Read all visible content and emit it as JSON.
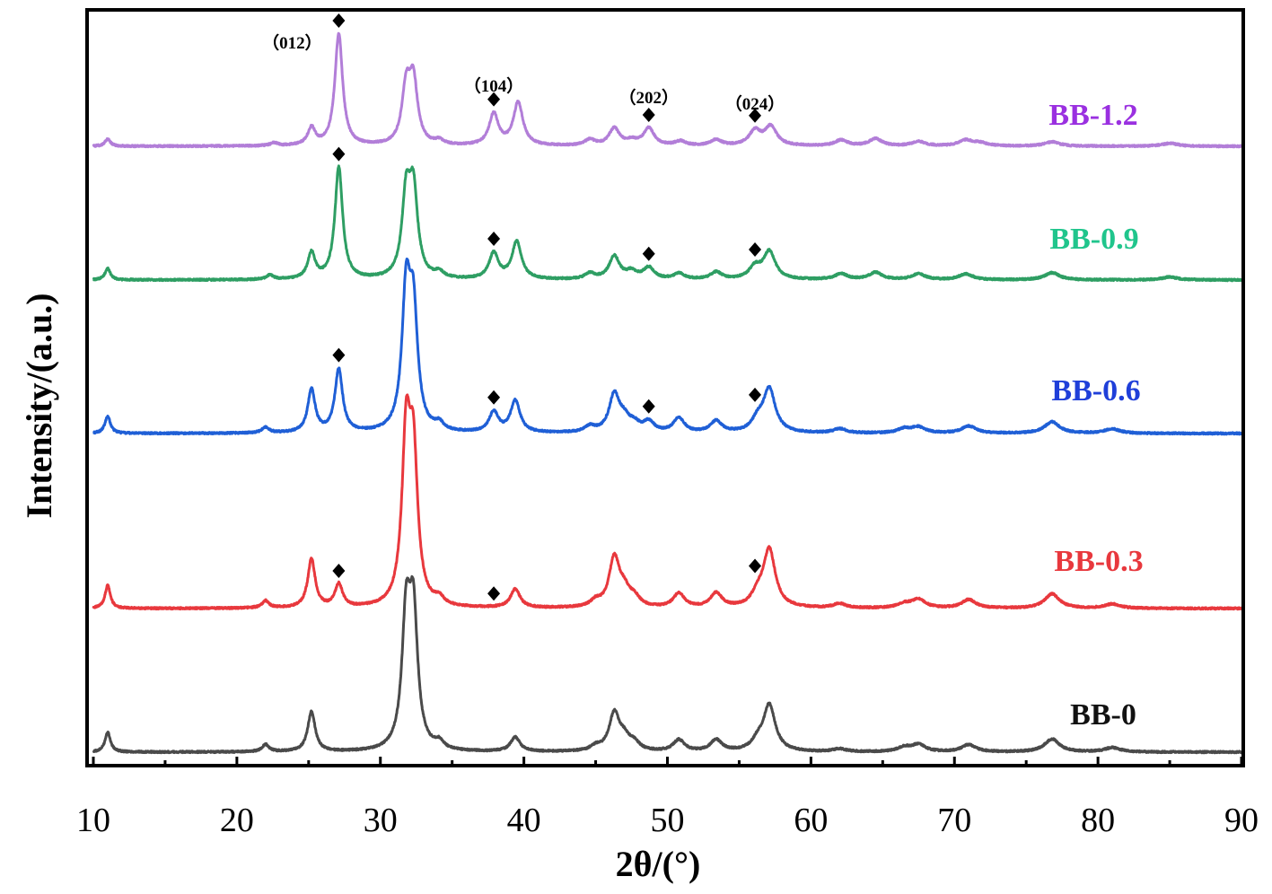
{
  "chart_data": {
    "type": "line",
    "title": "",
    "xlabel": "2θ/(°)",
    "ylabel": "Intensity/(a.u.)",
    "xlim": [
      10,
      90
    ],
    "xticks": [
      10,
      20,
      30,
      40,
      50,
      60,
      70,
      80,
      90
    ],
    "xtick_labels": [
      "10",
      "20",
      "30",
      "40",
      "50",
      "60",
      "70",
      "80",
      "90"
    ],
    "yticks": "none",
    "grid": false,
    "legend": "inline labels at right of each trace",
    "peak_marker": "◆",
    "peak_labels": [
      {
        "text": "（012）",
        "x": 27.1
      },
      {
        "text": "（104）",
        "x": 37.9
      },
      {
        "text": "（202）",
        "x": 48.7
      },
      {
        "text": "（024）",
        "x": 56.1
      }
    ],
    "series": [
      {
        "name": "BB-0",
        "color": "#4a4a4a",
        "label_color": "#111111",
        "peaks": [
          [
            11.0,
            0.14
          ],
          [
            22.0,
            0.05
          ],
          [
            25.2,
            0.28
          ],
          [
            31.8,
            0.88
          ],
          [
            32.3,
            0.9
          ],
          [
            34.1,
            0.05
          ],
          [
            39.4,
            0.1
          ],
          [
            45.0,
            0.03
          ],
          [
            46.3,
            0.26
          ],
          [
            47.0,
            0.08
          ],
          [
            47.7,
            0.05
          ],
          [
            50.8,
            0.08
          ],
          [
            53.4,
            0.08
          ],
          [
            56.3,
            0.06
          ],
          [
            57.1,
            0.32
          ],
          [
            62.0,
            0.02
          ],
          [
            66.5,
            0.03
          ],
          [
            67.5,
            0.05
          ],
          [
            71.0,
            0.05
          ],
          [
            76.8,
            0.09
          ],
          [
            81.0,
            0.03
          ]
        ],
        "markers": []
      },
      {
        "name": "BB-0.3",
        "color": "#e8383d",
        "label_color": "#e8383d",
        "peaks": [
          [
            11.0,
            0.16
          ],
          [
            22.0,
            0.05
          ],
          [
            25.2,
            0.34
          ],
          [
            27.1,
            0.16
          ],
          [
            31.8,
            1.13
          ],
          [
            32.3,
            0.98
          ],
          [
            34.1,
            0.05
          ],
          [
            39.4,
            0.13
          ],
          [
            45.0,
            0.04
          ],
          [
            46.3,
            0.34
          ],
          [
            47.0,
            0.1
          ],
          [
            47.7,
            0.06
          ],
          [
            50.8,
            0.1
          ],
          [
            53.4,
            0.1
          ],
          [
            56.3,
            0.08
          ],
          [
            57.1,
            0.4
          ],
          [
            62.0,
            0.03
          ],
          [
            66.5,
            0.03
          ],
          [
            67.5,
            0.06
          ],
          [
            71.0,
            0.06
          ],
          [
            76.8,
            0.1
          ],
          [
            81.0,
            0.03
          ]
        ],
        "markers": [
          27.1,
          37.9,
          56.1
        ]
      },
      {
        "name": "BB-0.6",
        "color": "#1f5fd6",
        "label_color": "#1f3fd9",
        "peaks": [
          [
            11.0,
            0.12
          ],
          [
            22.0,
            0.04
          ],
          [
            25.2,
            0.3
          ],
          [
            27.1,
            0.44
          ],
          [
            31.8,
            0.93
          ],
          [
            32.3,
            0.78
          ],
          [
            34.1,
            0.05
          ],
          [
            37.9,
            0.14
          ],
          [
            39.4,
            0.22
          ],
          [
            44.6,
            0.04
          ],
          [
            46.3,
            0.26
          ],
          [
            47.0,
            0.08
          ],
          [
            47.7,
            0.05
          ],
          [
            48.7,
            0.07
          ],
          [
            50.8,
            0.1
          ],
          [
            53.4,
            0.08
          ],
          [
            56.3,
            0.08
          ],
          [
            57.1,
            0.3
          ],
          [
            62.0,
            0.03
          ],
          [
            66.5,
            0.03
          ],
          [
            67.5,
            0.04
          ],
          [
            71.0,
            0.05
          ],
          [
            76.8,
            0.08
          ],
          [
            81.0,
            0.03
          ]
        ],
        "markers": [
          27.1,
          37.9,
          48.7,
          56.1
        ]
      },
      {
        "name": "BB-0.9",
        "color": "#2e9e63",
        "label_color": "#20c58c",
        "peaks": [
          [
            11.0,
            0.08
          ],
          [
            22.3,
            0.03
          ],
          [
            25.2,
            0.18
          ],
          [
            27.1,
            0.78
          ],
          [
            31.8,
            0.55
          ],
          [
            32.3,
            0.58
          ],
          [
            34.1,
            0.04
          ],
          [
            37.9,
            0.18
          ],
          [
            39.5,
            0.26
          ],
          [
            44.6,
            0.04
          ],
          [
            46.3,
            0.16
          ],
          [
            47.5,
            0.05
          ],
          [
            48.7,
            0.08
          ],
          [
            50.8,
            0.04
          ],
          [
            53.4,
            0.05
          ],
          [
            56.1,
            0.08
          ],
          [
            57.1,
            0.19
          ],
          [
            62.1,
            0.04
          ],
          [
            64.5,
            0.05
          ],
          [
            67.5,
            0.04
          ],
          [
            70.8,
            0.04
          ],
          [
            76.8,
            0.05
          ],
          [
            85.0,
            0.02
          ]
        ],
        "markers": [
          27.1,
          37.9,
          48.7,
          56.1
        ]
      },
      {
        "name": "BB-1.2",
        "color": "#b27ed8",
        "label_color": "#9a30e0",
        "peaks": [
          [
            11.0,
            0.05
          ],
          [
            22.6,
            0.02
          ],
          [
            25.2,
            0.12
          ],
          [
            27.1,
            0.78
          ],
          [
            31.8,
            0.38
          ],
          [
            32.3,
            0.42
          ],
          [
            34.1,
            0.03
          ],
          [
            37.9,
            0.22
          ],
          [
            39.6,
            0.3
          ],
          [
            44.6,
            0.04
          ],
          [
            46.3,
            0.12
          ],
          [
            47.5,
            0.03
          ],
          [
            48.7,
            0.12
          ],
          [
            50.9,
            0.03
          ],
          [
            53.4,
            0.04
          ],
          [
            56.1,
            0.1
          ],
          [
            57.2,
            0.13
          ],
          [
            62.1,
            0.04
          ],
          [
            64.5,
            0.05
          ],
          [
            67.5,
            0.03
          ],
          [
            70.8,
            0.04
          ],
          [
            71.8,
            0.02
          ],
          [
            76.8,
            0.03
          ],
          [
            85.0,
            0.02
          ]
        ],
        "markers": [
          27.1,
          37.9,
          48.7,
          56.1
        ]
      }
    ]
  }
}
